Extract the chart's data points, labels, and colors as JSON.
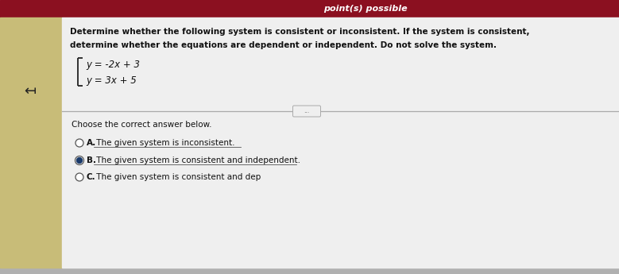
{
  "bg_top_color": "#8b1020",
  "bg_main_color": "#d0d0d0",
  "bg_left_strip_color": "#c8bc78",
  "bg_content_color": "#efefef",
  "header_text": "point(s) possible",
  "question_text_line1": "Determine whether the following system is consistent or inconsistent. If the system is consistent,",
  "question_text_line2": "determine whether the equations are dependent or independent. Do not solve the system.",
  "eq1": "y = -2x + 3",
  "eq2": "y = 3x + 5",
  "divider_label": "...",
  "choose_text": "Choose the correct answer below.",
  "optA_label": "A",
  "optA_text": " The given system is inconsistent.",
  "optB_label": "B",
  "optB_text": " The given system is consistent and independent.",
  "optC_label": "C",
  "optC_text": " The given system is consistent and dep",
  "selected_option": "B",
  "arrow_symbol": "↤",
  "header_fontsize": 8,
  "body_fontsize": 7.5,
  "eq_fontsize": 8.5,
  "option_fontsize": 7.5
}
